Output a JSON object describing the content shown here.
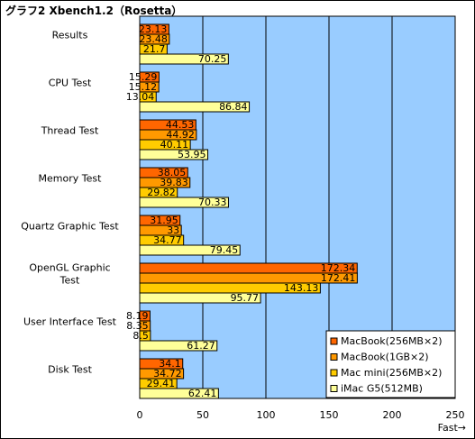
{
  "title": "グラフ2  Xbench1.2（Rosetta）",
  "chart_data": {
    "type": "bar",
    "orientation": "horizontal",
    "title": "グラフ2  Xbench1.2（Rosetta）",
    "xlabel": "Fast→",
    "ylabel": "",
    "xlim": [
      0,
      250
    ],
    "xticks": [
      "0",
      "50",
      "100",
      "150",
      "200",
      "250"
    ],
    "grid": true,
    "legend_position": "bottom-right",
    "plot_background": "#99ccff",
    "categories": [
      [
        "Results"
      ],
      [
        "CPU Test"
      ],
      [
        "Thread Test"
      ],
      [
        "Memory Test"
      ],
      [
        "Quartz Graphic Test"
      ],
      [
        "OpenGL Graphic",
        "Test"
      ],
      [
        "User Interface Test"
      ],
      [
        "Disk Test"
      ]
    ],
    "series": [
      {
        "name": "MacBook(256MB×2)",
        "color": "#ff6600",
        "values": [
          23.13,
          15.29,
          44.53,
          38.05,
          31.95,
          172.34,
          8.19,
          34.1
        ]
      },
      {
        "name": "MacBook(1GB×2)",
        "color": "#ff9900",
        "values": [
          23.48,
          15.12,
          44.92,
          39.83,
          33,
          172.41,
          8.35,
          34.72
        ]
      },
      {
        "name": "Mac mini(256MB×2)",
        "color": "#ffcc00",
        "values": [
          21.7,
          13.04,
          40.11,
          29.82,
          34.77,
          143.13,
          8.5,
          29.41
        ]
      },
      {
        "name": "iMac G5(512MB)",
        "color": "#ffff99",
        "values": [
          70.25,
          86.84,
          53.95,
          70.33,
          79.45,
          95.77,
          61.27,
          62.41
        ]
      }
    ]
  }
}
